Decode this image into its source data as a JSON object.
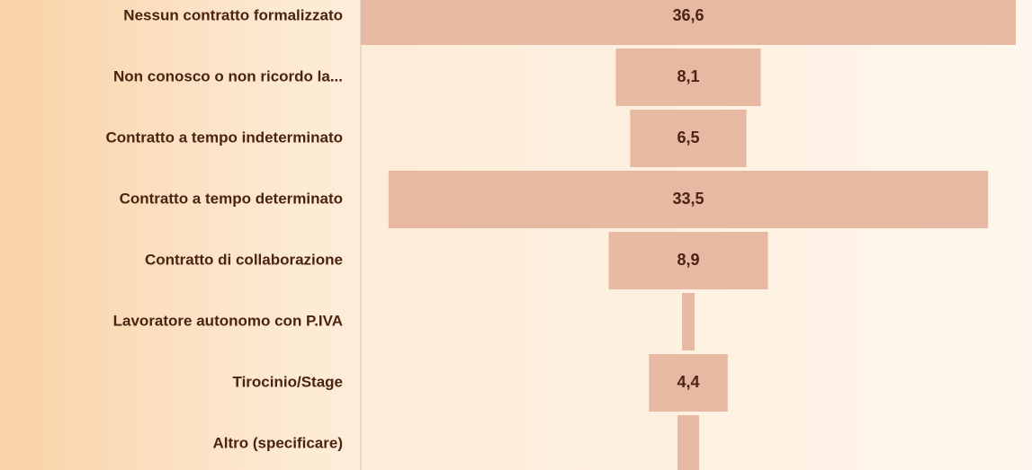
{
  "chart_data": {
    "type": "funnel",
    "categories": [
      "Nessun contratto formalizzato",
      "Non conosco o non ricordo la...",
      "Contratto a tempo indeterminato",
      "Contratto a tempo determinato",
      "Contratto di collaborazione",
      "Lavoratore autonomo con P.IVA",
      "Tirocinio/Stage",
      "Altro (specificare)"
    ],
    "values": [
      36.6,
      8.1,
      6.5,
      33.5,
      8.9,
      0.7,
      4.4,
      1.2
    ],
    "value_labels": [
      "36,6",
      "8,1",
      "6,5",
      "33,5",
      "8,9",
      null,
      "4,4",
      null
    ],
    "color": "#e8b9a2"
  }
}
